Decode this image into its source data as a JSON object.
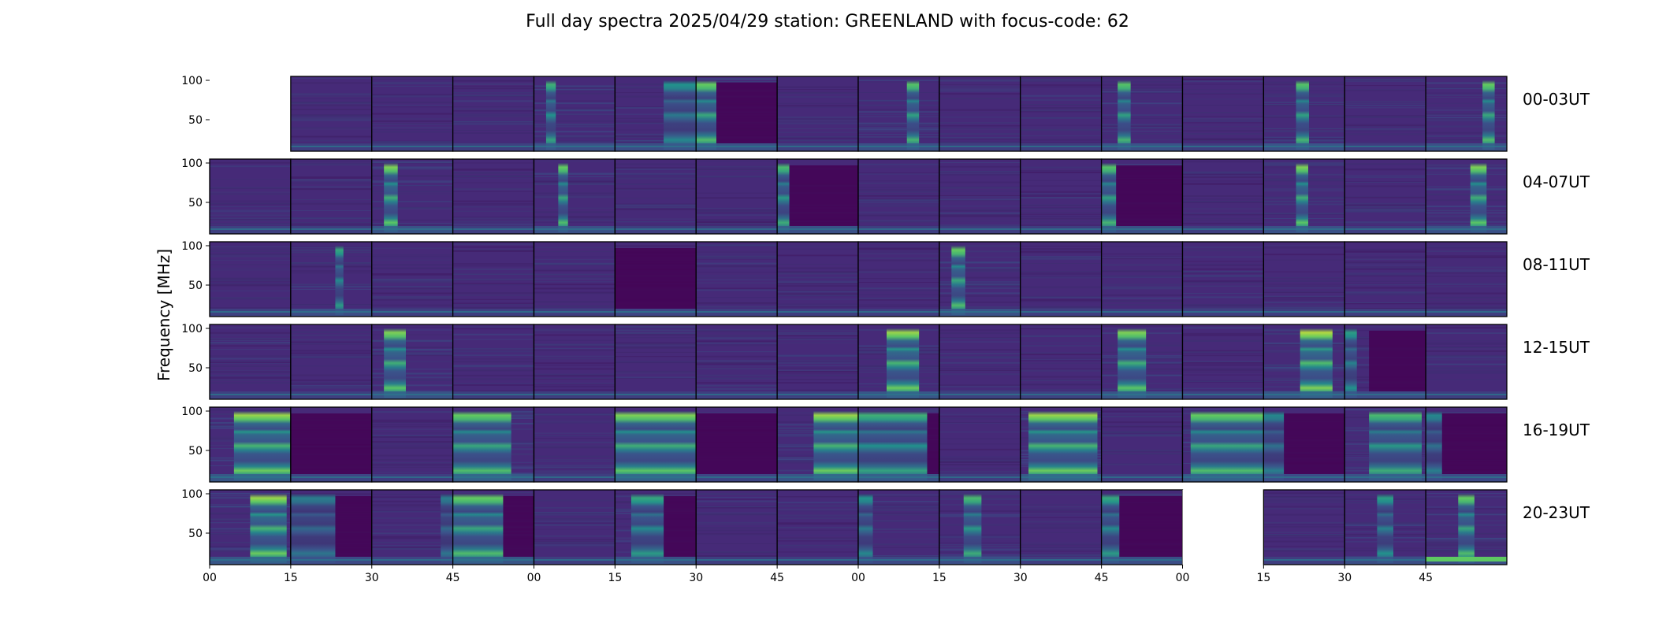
{
  "chart_data": {
    "type": "heatmap",
    "title": "Full day spectra 2025/04/29 station: GREENLAND with focus-code: 62",
    "ylabel": "Frequency [MHz]",
    "xlabel": "",
    "ylim": [
      10,
      105
    ],
    "yticks": [
      50,
      100
    ],
    "xticks": [
      "00",
      "15",
      "30",
      "45",
      "00",
      "15",
      "30",
      "45",
      "00",
      "15",
      "30",
      "45",
      "00",
      "15",
      "30",
      "45"
    ],
    "colormap": "viridis",
    "colors": {
      "background": "#462a78",
      "low": "#440154",
      "mid": "#3b528b",
      "high": "#21918c",
      "peak": "#5ec962",
      "max": "#b5de2b",
      "empty": "#ffffff"
    },
    "rows": [
      {
        "label": "00-03UT",
        "panels": [
          {
            "missing": true
          },
          {
            "activity": 0.05
          },
          {
            "activity": 0.05
          },
          {
            "activity": 0.05
          },
          {
            "activity": 0.55,
            "bursts": [
              [
                0.15,
                0.27,
                0.6
              ]
            ]
          },
          {
            "activity": 0.5,
            "bursts": [
              [
                0.6,
                1.0,
                0.45
              ]
            ]
          },
          {
            "activity": 0.6,
            "bursts": [
              [
                0.0,
                0.25,
                0.75
              ]
            ],
            "dark": [
              0.25,
              1.0
            ]
          },
          {
            "activity": 0.1
          },
          {
            "activity": 0.55,
            "bursts": [
              [
                0.6,
                0.75,
                0.7
              ]
            ]
          },
          {
            "activity": 0.05
          },
          {
            "activity": 0.05
          },
          {
            "activity": 0.55,
            "bursts": [
              [
                0.2,
                0.36,
                0.7
              ]
            ]
          },
          {
            "activity": 0.05
          },
          {
            "activity": 0.55,
            "bursts": [
              [
                0.4,
                0.56,
                0.7
              ]
            ]
          },
          {
            "activity": 0.05
          },
          {
            "activity": 0.55,
            "bursts": [
              [
                0.7,
                0.85,
                0.75
              ]
            ]
          }
        ]
      },
      {
        "label": "04-07UT",
        "panels": [
          {
            "activity": 0.1
          },
          {
            "activity": 0.05
          },
          {
            "activity": 0.6,
            "bursts": [
              [
                0.15,
                0.32,
                0.8
              ]
            ]
          },
          {
            "activity": 0.05
          },
          {
            "activity": 0.55,
            "bursts": [
              [
                0.3,
                0.42,
                0.75
              ]
            ]
          },
          {
            "activity": 0.05
          },
          {
            "activity": 0.05
          },
          {
            "activity": 0.55,
            "bursts": [
              [
                0.0,
                0.15,
                0.65
              ]
            ],
            "dark": [
              0.15,
              1.0
            ]
          },
          {
            "activity": 0.05
          },
          {
            "activity": 0.05
          },
          {
            "activity": 0.05
          },
          {
            "activity": 0.55,
            "bursts": [
              [
                0.0,
                0.18,
                0.7
              ]
            ],
            "dark": [
              0.18,
              1.0
            ]
          },
          {
            "activity": 0.05
          },
          {
            "activity": 0.55,
            "bursts": [
              [
                0.4,
                0.55,
                0.8
              ]
            ]
          },
          {
            "activity": 0.05
          },
          {
            "activity": 0.55,
            "bursts": [
              [
                0.55,
                0.75,
                0.8
              ]
            ]
          }
        ]
      },
      {
        "label": "08-11UT",
        "panels": [
          {
            "activity": 0.1
          },
          {
            "activity": 0.45,
            "bursts": [
              [
                0.55,
                0.65,
                0.55
              ]
            ]
          },
          {
            "activity": 0.05
          },
          {
            "activity": 0.05
          },
          {
            "activity": 0.05
          },
          {
            "activity": 0.2,
            "dark": [
              0.0,
              1.0
            ]
          },
          {
            "activity": 0.05
          },
          {
            "activity": 0.05
          },
          {
            "activity": 0.05
          },
          {
            "activity": 0.6,
            "bursts": [
              [
                0.15,
                0.32,
                0.75
              ]
            ]
          },
          {
            "activity": 0.05
          },
          {
            "activity": 0.05
          },
          {
            "activity": 0.05
          },
          {
            "activity": 0.05
          },
          {
            "activity": 0.05
          },
          {
            "activity": 0.05
          }
        ]
      },
      {
        "label": "12-15UT",
        "panels": [
          {
            "activity": 0.1
          },
          {
            "activity": 0.05
          },
          {
            "activity": 0.65,
            "bursts": [
              [
                0.15,
                0.42,
                0.8
              ]
            ]
          },
          {
            "activity": 0.05
          },
          {
            "activity": 0.05
          },
          {
            "activity": 0.05
          },
          {
            "activity": 0.05
          },
          {
            "activity": 0.1
          },
          {
            "activity": 0.65,
            "bursts": [
              [
                0.35,
                0.75,
                0.85
              ]
            ]
          },
          {
            "activity": 0.1
          },
          {
            "activity": 0.15
          },
          {
            "activity": 0.65,
            "bursts": [
              [
                0.2,
                0.55,
                0.8
              ]
            ]
          },
          {
            "activity": 0.1
          },
          {
            "activity": 0.7,
            "bursts": [
              [
                0.45,
                0.85,
                0.9
              ]
            ]
          },
          {
            "activity": 0.4,
            "bursts": [
              [
                0.0,
                0.15,
                0.5
              ]
            ],
            "dark": [
              0.3,
              1.0
            ]
          },
          {
            "activity": 0.05
          }
        ]
      },
      {
        "label": "16-19UT",
        "panels": [
          {
            "activity": 0.75,
            "bursts": [
              [
                0.3,
                1.0,
                0.85
              ]
            ]
          },
          {
            "activity": 0.2,
            "dark": [
              0.0,
              1.0
            ]
          },
          {
            "activity": 0.05
          },
          {
            "activity": 0.75,
            "bursts": [
              [
                0.0,
                0.72,
                0.75
              ]
            ]
          },
          {
            "activity": 0.05
          },
          {
            "activity": 0.8,
            "bursts": [
              [
                0.0,
                1.0,
                0.8
              ]
            ]
          },
          {
            "activity": 0.2,
            "dark": [
              0.0,
              1.0
            ]
          },
          {
            "activity": 0.75,
            "bursts": [
              [
                0.45,
                1.0,
                0.85
              ]
            ]
          },
          {
            "activity": 0.6,
            "bursts": [
              [
                0.0,
                0.85,
                0.6
              ]
            ],
            "dark": [
              0.85,
              1.0
            ]
          },
          {
            "activity": 0.05
          },
          {
            "activity": 0.8,
            "bursts": [
              [
                0.1,
                0.95,
                0.85
              ]
            ]
          },
          {
            "activity": 0.05
          },
          {
            "activity": 0.75,
            "bursts": [
              [
                0.1,
                1.0,
                0.75
              ]
            ]
          },
          {
            "activity": 0.35,
            "bursts": [
              [
                0.0,
                0.25,
                0.4
              ]
            ],
            "dark": [
              0.25,
              1.0
            ]
          },
          {
            "activity": 0.6,
            "bursts": [
              [
                0.3,
                0.95,
                0.65
              ]
            ]
          },
          {
            "activity": 0.35,
            "bursts": [
              [
                0.0,
                0.2,
                0.4
              ]
            ],
            "dark": [
              0.2,
              1.0
            ]
          }
        ]
      },
      {
        "label": "20-23UT",
        "panels": [
          {
            "activity": 0.7,
            "bursts": [
              [
                0.5,
                0.95,
                0.85
              ]
            ]
          },
          {
            "activity": 0.35,
            "bursts": [
              [
                0.0,
                0.55,
                0.35
              ]
            ],
            "dark": [
              0.55,
              1.0
            ]
          },
          {
            "activity": 0.2,
            "bursts": [
              [
                0.85,
                1.0,
                0.35
              ]
            ]
          },
          {
            "activity": 0.7,
            "bursts": [
              [
                0.0,
                0.62,
                0.75
              ]
            ],
            "dark": [
              0.62,
              1.0
            ]
          },
          {
            "activity": 0.05
          },
          {
            "activity": 0.55,
            "bursts": [
              [
                0.2,
                0.6,
                0.55
              ]
            ],
            "dark": [
              0.6,
              1.0
            ]
          },
          {
            "activity": 0.05
          },
          {
            "activity": 0.05
          },
          {
            "activity": 0.3,
            "bursts": [
              [
                0.0,
                0.18,
                0.45
              ]
            ]
          },
          {
            "activity": 0.5,
            "bursts": [
              [
                0.3,
                0.52,
                0.65
              ]
            ]
          },
          {
            "activity": 0.05
          },
          {
            "activity": 0.5,
            "bursts": [
              [
                0.0,
                0.22,
                0.55
              ]
            ],
            "dark": [
              0.22,
              1.0
            ]
          },
          {
            "missing": true
          },
          {
            "activity": 0.05
          },
          {
            "activity": 0.5,
            "bursts": [
              [
                0.4,
                0.6,
                0.5
              ]
            ]
          },
          {
            "activity": 0.55,
            "bursts": [
              [
                0.4,
                0.6,
                0.75
              ]
            ],
            "lowband": [
              0.0,
              1.0
            ]
          }
        ]
      }
    ]
  }
}
